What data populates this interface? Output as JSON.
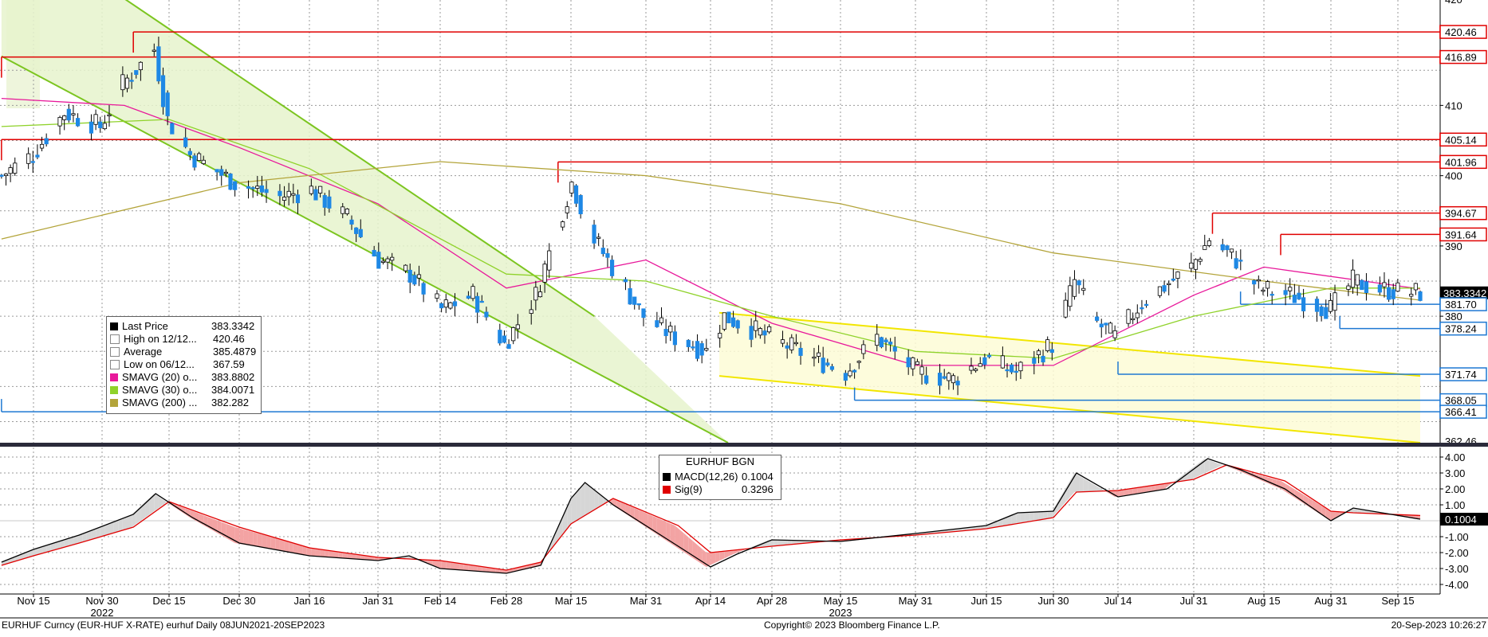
{
  "footer": {
    "left": "EURHUF Curncy (EUR-HUF X-RATE) eurhuf  Daily 08JUN2021-20SEP2023",
    "center": "Copyright© 2023 Bloomberg Finance L.P.",
    "right": "20-Sep-2023 10:26:27"
  },
  "colors": {
    "up": "#000000",
    "down": "#1e88e5",
    "sma20": "#e8189a",
    "sma30": "#8fd22a",
    "sma200": "#b3a43a",
    "resistance": "#e00000",
    "support": "#1e78d2",
    "channel_green": "#7cc520",
    "channel_yellow": "#f2e600",
    "macd": "#000000",
    "signal": "#e00000"
  },
  "legend": {
    "rows": [
      {
        "icon": "last-price-icon",
        "name": "Last Price",
        "value": "383.3342",
        "color": "#000000"
      },
      {
        "icon": "high-marker-icon",
        "name": "High on 12/12...",
        "value": "420.46",
        "color": ""
      },
      {
        "icon": "average-marker-icon",
        "name": "Average",
        "value": "385.4879",
        "color": ""
      },
      {
        "icon": "low-marker-icon",
        "name": "Low on 06/12...",
        "value": "367.59",
        "color": ""
      },
      {
        "icon": "sma20-swatch",
        "name": "SMAVG (20)  o...",
        "value": "383.8802",
        "color": "#e8189a"
      },
      {
        "icon": "sma30-swatch",
        "name": "SMAVG (30)  o...",
        "value": "384.0071",
        "color": "#8fd22a"
      },
      {
        "icon": "sma200-swatch",
        "name": "SMAVG (200)  ...",
        "value": "382.282",
        "color": "#b3a43a"
      }
    ]
  },
  "macd_legend": {
    "title": "EURHUF BGN",
    "rows": [
      {
        "name": "MACD(12,26)",
        "value": "0.1004",
        "color": "#000000"
      },
      {
        "name": "Sig(9)",
        "value": "0.3296",
        "color": "#e00000"
      }
    ]
  },
  "chart_data": [
    {
      "type": "candlestick",
      "title": "",
      "ylim": [
        362,
        425
      ],
      "y_ticks": [
        "380",
        "390",
        "400",
        "410"
      ],
      "y_tick_values": [
        380,
        390,
        400,
        410
      ],
      "y_top_clipped_label": "420",
      "y_bottom_clipped_label": "362.46",
      "last_price_label": "383.3342",
      "grid": true,
      "x_labels": [
        "Nov 15",
        "Nov 30",
        "Dec 15",
        "Dec 30",
        "Jan 16",
        "Jan 31",
        "Feb 14",
        "Feb 28",
        "Mar 15",
        "Mar 31",
        "Apr 14",
        "Apr 28",
        "May 15",
        "May 31",
        "Jun 15",
        "Jun 30",
        "Jul 14",
        "Jul 31",
        "Aug 15",
        "Aug 31",
        "Sep 15"
      ],
      "year_labels": [
        {
          "label": "2022",
          "after_tick": "Nov 30"
        },
        {
          "label": "2023",
          "after_tick": "May 15"
        }
      ],
      "price_path": [
        [
          "Nov 08",
          400
        ],
        [
          "Nov 15",
          403
        ],
        [
          "Nov 22",
          409
        ],
        [
          "Nov 30",
          407
        ],
        [
          "Dec 05",
          413
        ],
        [
          "Dec 12",
          418
        ],
        [
          "Dec 15",
          408
        ],
        [
          "Dec 20",
          403
        ],
        [
          "Dec 30",
          399
        ],
        [
          "Jan 09",
          397
        ],
        [
          "Jan 16",
          398
        ],
        [
          "Jan 24",
          394
        ],
        [
          "Jan 31",
          388
        ],
        [
          "Feb 07",
          386
        ],
        [
          "Feb 14",
          381
        ],
        [
          "Feb 21",
          383
        ],
        [
          "Feb 28",
          376
        ],
        [
          "Mar 07",
          383
        ],
        [
          "Mar 10",
          389
        ],
        [
          "Mar 15",
          399
        ],
        [
          "Mar 20",
          391
        ],
        [
          "Mar 24",
          387
        ],
        [
          "Mar 31",
          380
        ],
        [
          "Apr 07",
          377
        ],
        [
          "Apr 14",
          375
        ],
        [
          "Apr 18",
          380
        ],
        [
          "Apr 28",
          377
        ],
        [
          "May 08",
          374
        ],
        [
          "May 15",
          372
        ],
        [
          "May 22",
          377
        ],
        [
          "May 31",
          372
        ],
        [
          "Jun 08",
          371
        ],
        [
          "Jun 15",
          374
        ],
        [
          "Jun 22",
          372
        ],
        [
          "Jun 30",
          376
        ],
        [
          "Jul 05",
          385
        ],
        [
          "Jul 10",
          379
        ],
        [
          "Jul 14",
          377
        ],
        [
          "Jul 20",
          382
        ],
        [
          "Jul 31",
          387
        ],
        [
          "Aug 04",
          391
        ],
        [
          "Aug 10",
          388
        ],
        [
          "Aug 15",
          384
        ],
        [
          "Aug 22",
          383
        ],
        [
          "Aug 31",
          381
        ],
        [
          "Sep 05",
          385
        ],
        [
          "Sep 10",
          384
        ],
        [
          "Sep 15",
          383.5
        ],
        [
          "Sep 20",
          383.33
        ]
      ],
      "moving_averages": {
        "SMAVG (20)": [
          [
            "Nov 08",
            411
          ],
          [
            "Dec 05",
            410
          ],
          [
            "Dec 30",
            404
          ],
          [
            "Jan 31",
            396
          ],
          [
            "Feb 28",
            384
          ],
          [
            "Mar 31",
            388
          ],
          [
            "Apr 28",
            379
          ],
          [
            "May 31",
            373
          ],
          [
            "Jun 30",
            373
          ],
          [
            "Jul 31",
            383
          ],
          [
            "Aug 15",
            387
          ],
          [
            "Sep 20",
            383.88
          ]
        ],
        "SMAVG (30)": [
          [
            "Nov 08",
            407
          ],
          [
            "Dec 15",
            408
          ],
          [
            "Jan 16",
            401
          ],
          [
            "Feb 28",
            386
          ],
          [
            "Mar 31",
            385
          ],
          [
            "Apr 28",
            380
          ],
          [
            "May 31",
            375
          ],
          [
            "Jun 30",
            374
          ],
          [
            "Jul 31",
            380
          ],
          [
            "Aug 31",
            384
          ],
          [
            "Sep 20",
            384.01
          ]
        ],
        "SMAVG (200)": [
          [
            "Nov 08",
            391
          ],
          [
            "Dec 30",
            399
          ],
          [
            "Feb 14",
            402
          ],
          [
            "Mar 31",
            400
          ],
          [
            "May 15",
            396
          ],
          [
            "Jun 30",
            389
          ],
          [
            "Aug 15",
            385
          ],
          [
            "Sep 20",
            382.28
          ]
        ]
      },
      "resistance_lines": [
        {
          "label": "420.46",
          "value": 420.46,
          "from": "Dec 07"
        },
        {
          "label": "416.89",
          "value": 416.89,
          "from": "Nov 08"
        },
        {
          "label": "405.14",
          "value": 405.14,
          "from": "Nov 08"
        },
        {
          "label": "401.96",
          "value": 401.96,
          "from": "Mar 12"
        },
        {
          "label": "394.67",
          "value": 394.67,
          "from": "Aug 04"
        },
        {
          "label": "391.64",
          "value": 391.64,
          "from": "Aug 19"
        }
      ],
      "support_lines": [
        {
          "label": "381.70",
          "value": 381.7,
          "from": "Aug 10"
        },
        {
          "label": "378.24",
          "value": 378.24,
          "from": "Sep 02"
        },
        {
          "label": "371.74",
          "value": 371.74,
          "from": "Jul 14"
        },
        {
          "label": "368.05",
          "value": 368.05,
          "from": "May 18"
        },
        {
          "label": "366.41",
          "value": 366.41,
          "from": "Nov 08"
        }
      ],
      "channels": [
        {
          "name": "descending green channel",
          "upper": [
            [
              "Nov 08",
              437
            ],
            [
              "Mar 20",
              380
            ]
          ],
          "lower": [
            [
              "Nov 08",
              417
            ],
            [
              "Apr 18",
              362
            ]
          ]
        },
        {
          "name": "yellow wedge",
          "upper": [
            [
              "Apr 16",
              380.5
            ],
            [
              "Sep 20",
              371.5
            ]
          ],
          "lower": [
            [
              "Apr 16",
              371.5
            ],
            [
              "Sep 20",
              362
            ]
          ]
        }
      ]
    },
    {
      "type": "line",
      "title": "EURHUF BGN",
      "ylim": [
        -4.6,
        4.6
      ],
      "y_ticks": [
        "4.00",
        "3.00",
        "2.00",
        "1.00",
        "-1.00",
        "-2.00",
        "-3.00",
        "-4.00"
      ],
      "y_tick_values": [
        4,
        3,
        2,
        1,
        -1,
        -2,
        -3,
        -4
      ],
      "last_macd_label": "0.1004",
      "series": [
        {
          "name": "MACD(12,26)",
          "values": [
            [
              "Nov 08",
              -2.6
            ],
            [
              "Nov 15",
              -1.8
            ],
            [
              "Nov 25",
              -0.9
            ],
            [
              "Dec 07",
              0.4
            ],
            [
              "Dec 12",
              1.7
            ],
            [
              "Dec 20",
              0.2
            ],
            [
              "Dec 30",
              -1.4
            ],
            [
              "Jan 16",
              -2.2
            ],
            [
              "Jan 31",
              -2.5
            ],
            [
              "Feb 07",
              -2.2
            ],
            [
              "Feb 14",
              -3.0
            ],
            [
              "Feb 28",
              -3.3
            ],
            [
              "Mar 08",
              -2.8
            ],
            [
              "Mar 15",
              1.4
            ],
            [
              "Mar 18",
              2.4
            ],
            [
              "Mar 24",
              1.0
            ],
            [
              "Apr 07",
              -1.6
            ],
            [
              "Apr 14",
              -2.9
            ],
            [
              "Apr 20",
              -2.1
            ],
            [
              "Apr 28",
              -1.2
            ],
            [
              "May 15",
              -1.3
            ],
            [
              "May 31",
              -0.8
            ],
            [
              "Jun 15",
              -0.3
            ],
            [
              "Jun 22",
              0.5
            ],
            [
              "Jun 30",
              0.6
            ],
            [
              "Jul 05",
              3.0
            ],
            [
              "Jul 14",
              1.5
            ],
            [
              "Jul 25",
              2.0
            ],
            [
              "Aug 03",
              3.9
            ],
            [
              "Aug 10",
              3.2
            ],
            [
              "Aug 20",
              2.0
            ],
            [
              "Aug 31",
              0.0
            ],
            [
              "Sep 05",
              0.8
            ],
            [
              "Sep 20",
              0.1004
            ]
          ]
        },
        {
          "name": "Sig(9)",
          "values": [
            [
              "Nov 08",
              -2.8
            ],
            [
              "Nov 15",
              -2.2
            ],
            [
              "Nov 25",
              -1.4
            ],
            [
              "Dec 07",
              -0.4
            ],
            [
              "Dec 15",
              1.2
            ],
            [
              "Dec 30",
              -0.4
            ],
            [
              "Jan 16",
              -1.7
            ],
            [
              "Jan 31",
              -2.3
            ],
            [
              "Feb 14",
              -2.5
            ],
            [
              "Feb 28",
              -3.1
            ],
            [
              "Mar 08",
              -2.6
            ],
            [
              "Mar 15",
              -0.2
            ],
            [
              "Mar 24",
              1.4
            ],
            [
              "Apr 07",
              -0.3
            ],
            [
              "Apr 14",
              -2.0
            ],
            [
              "Apr 28",
              -1.6
            ],
            [
              "May 15",
              -1.2
            ],
            [
              "May 31",
              -0.9
            ],
            [
              "Jun 15",
              -0.5
            ],
            [
              "Jun 30",
              0.2
            ],
            [
              "Jul 05",
              1.8
            ],
            [
              "Jul 14",
              1.9
            ],
            [
              "Jul 31",
              2.6
            ],
            [
              "Aug 07",
              3.5
            ],
            [
              "Aug 20",
              2.5
            ],
            [
              "Aug 31",
              0.6
            ],
            [
              "Sep 05",
              0.5
            ],
            [
              "Sep 20",
              0.3296
            ]
          ]
        }
      ]
    }
  ]
}
